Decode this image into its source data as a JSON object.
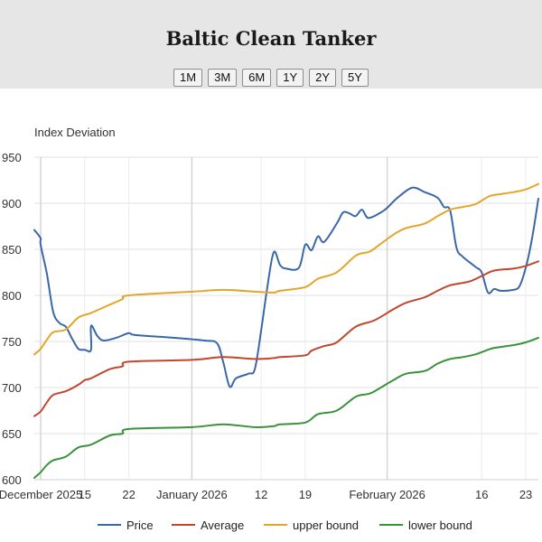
{
  "header": {
    "title": "Baltic Clean Tanker",
    "ranges": [
      "1M",
      "3M",
      "6M",
      "1Y",
      "2Y",
      "5Y"
    ]
  },
  "chart_data": {
    "type": "line",
    "title": "Baltic Clean Tanker",
    "ylabel": "Index Deviation",
    "xlabel": "",
    "ylim": [
      600,
      950
    ],
    "y_ticks": [
      600,
      650,
      700,
      750,
      800,
      850,
      900,
      950
    ],
    "x_range": [
      "2025-12-07",
      "2026-02-25"
    ],
    "x_ticks": [
      {
        "date": "2025-12-08",
        "label": "December 2025"
      },
      {
        "date": "2025-12-15",
        "label": "15"
      },
      {
        "date": "2025-12-22",
        "label": "22"
      },
      {
        "date": "2026-01-01",
        "label": "January 2026"
      },
      {
        "date": "2026-01-12",
        "label": "12"
      },
      {
        "date": "2026-01-19",
        "label": "19"
      },
      {
        "date": "2026-02-01",
        "label": "February 2026"
      },
      {
        "date": "2026-02-16",
        "label": "16"
      },
      {
        "date": "2026-02-23",
        "label": "23"
      }
    ],
    "grid": true,
    "legend_position": "bottom",
    "series": [
      {
        "name": "Price",
        "color": "#3a67a8",
        "points": [
          [
            "2025-12-07",
            871
          ],
          [
            "2025-12-08",
            862
          ],
          [
            "2025-12-08",
            855
          ],
          [
            "2025-12-09",
            823
          ],
          [
            "2025-12-10",
            782
          ],
          [
            "2025-12-11",
            770
          ],
          [
            "2025-12-12",
            766
          ],
          [
            "2025-12-13",
            753
          ],
          [
            "2025-12-14",
            742
          ],
          [
            "2025-12-15",
            741
          ],
          [
            "2025-12-16",
            741
          ],
          [
            "2025-12-16",
            767
          ],
          [
            "2025-12-17",
            756
          ],
          [
            "2025-12-18",
            751
          ],
          [
            "2025-12-20",
            754
          ],
          [
            "2025-12-22",
            759
          ],
          [
            "2025-12-23",
            757
          ],
          [
            "2025-12-29",
            754
          ],
          [
            "2026-01-03",
            751
          ],
          [
            "2026-01-05",
            748
          ],
          [
            "2026-01-06",
            727
          ],
          [
            "2026-01-07",
            701
          ],
          [
            "2026-01-08",
            710
          ],
          [
            "2026-01-10",
            715
          ],
          [
            "2026-01-11",
            720
          ],
          [
            "2026-01-12",
            762
          ],
          [
            "2026-01-13",
            810
          ],
          [
            "2026-01-14",
            847
          ],
          [
            "2026-01-15",
            833
          ],
          [
            "2026-01-16",
            829
          ],
          [
            "2026-01-18",
            830
          ],
          [
            "2026-01-19",
            855
          ],
          [
            "2026-01-20",
            849
          ],
          [
            "2026-01-21",
            864
          ],
          [
            "2026-01-22",
            858
          ],
          [
            "2026-01-24",
            878
          ],
          [
            "2026-01-25",
            890
          ],
          [
            "2026-01-26",
            889
          ],
          [
            "2026-01-27",
            886
          ],
          [
            "2026-01-28",
            893
          ],
          [
            "2026-01-29",
            884
          ],
          [
            "2026-01-31",
            890
          ],
          [
            "2026-02-01",
            895
          ],
          [
            "2026-02-02",
            902
          ],
          [
            "2026-02-03",
            908
          ],
          [
            "2026-02-05",
            917
          ],
          [
            "2026-02-07",
            912
          ],
          [
            "2026-02-09",
            906
          ],
          [
            "2026-02-10",
            896
          ],
          [
            "2026-02-11",
            892
          ],
          [
            "2026-02-12",
            852
          ],
          [
            "2026-02-13",
            842
          ],
          [
            "2026-02-15",
            831
          ],
          [
            "2026-02-16",
            825
          ],
          [
            "2026-02-17",
            803
          ],
          [
            "2026-02-18",
            807
          ],
          [
            "2026-02-19",
            805
          ],
          [
            "2026-02-21",
            806
          ],
          [
            "2026-02-22",
            810
          ],
          [
            "2026-02-23",
            830
          ],
          [
            "2026-02-24",
            862
          ],
          [
            "2026-02-25",
            905
          ]
        ]
      },
      {
        "name": "Average",
        "color": "#c0472c",
        "points": [
          [
            "2025-12-07",
            669
          ],
          [
            "2025-12-08",
            674
          ],
          [
            "2025-12-09",
            684
          ],
          [
            "2025-12-10",
            692
          ],
          [
            "2025-12-12",
            696
          ],
          [
            "2025-12-14",
            703
          ],
          [
            "2025-12-15",
            708
          ],
          [
            "2025-12-16",
            710
          ],
          [
            "2025-12-19",
            720
          ],
          [
            "2025-12-21",
            723
          ],
          [
            "2025-12-22",
            728
          ],
          [
            "2026-01-01",
            730
          ],
          [
            "2026-01-06",
            733
          ],
          [
            "2026-01-11",
            731
          ],
          [
            "2026-01-14",
            732
          ],
          [
            "2026-01-15",
            733
          ],
          [
            "2026-01-19",
            735
          ],
          [
            "2026-01-20",
            740
          ],
          [
            "2026-01-22",
            745
          ],
          [
            "2026-01-24",
            749
          ],
          [
            "2026-01-27",
            766
          ],
          [
            "2026-01-30",
            773
          ],
          [
            "2026-02-02",
            785
          ],
          [
            "2026-02-04",
            792
          ],
          [
            "2026-02-07",
            798
          ],
          [
            "2026-02-09",
            805
          ],
          [
            "2026-02-11",
            811
          ],
          [
            "2026-02-14",
            815
          ],
          [
            "2026-02-16",
            821
          ],
          [
            "2026-02-18",
            827
          ],
          [
            "2026-02-21",
            829
          ],
          [
            "2026-02-23",
            832
          ],
          [
            "2026-02-25",
            837
          ]
        ]
      },
      {
        "name": "upper bound",
        "color": "#e3a52a",
        "points": [
          [
            "2025-12-07",
            736
          ],
          [
            "2025-12-08",
            742
          ],
          [
            "2025-12-09",
            752
          ],
          [
            "2025-12-10",
            760
          ],
          [
            "2025-12-12",
            763
          ],
          [
            "2025-12-14",
            776
          ],
          [
            "2025-12-16",
            781
          ],
          [
            "2025-12-19",
            790
          ],
          [
            "2025-12-21",
            796
          ],
          [
            "2025-12-22",
            800
          ],
          [
            "2026-01-01",
            804
          ],
          [
            "2026-01-06",
            806
          ],
          [
            "2026-01-11",
            804
          ],
          [
            "2026-01-14",
            803
          ],
          [
            "2026-01-15",
            805
          ],
          [
            "2026-01-19",
            809
          ],
          [
            "2026-01-21",
            818
          ],
          [
            "2026-01-24",
            825
          ],
          [
            "2026-01-27",
            843
          ],
          [
            "2026-01-29",
            847
          ],
          [
            "2026-01-30",
            851
          ],
          [
            "2026-02-02",
            866
          ],
          [
            "2026-02-04",
            873
          ],
          [
            "2026-02-07",
            878
          ],
          [
            "2026-02-09",
            886
          ],
          [
            "2026-02-11",
            893
          ],
          [
            "2026-02-13",
            896
          ],
          [
            "2026-02-15",
            899
          ],
          [
            "2026-02-17",
            907
          ],
          [
            "2026-02-18",
            909
          ],
          [
            "2026-02-21",
            912
          ],
          [
            "2026-02-23",
            915
          ],
          [
            "2026-02-25",
            921
          ]
        ]
      },
      {
        "name": "lower bound",
        "color": "#3a923a",
        "points": [
          [
            "2025-12-07",
            602
          ],
          [
            "2025-12-08",
            608
          ],
          [
            "2025-12-09",
            616
          ],
          [
            "2025-12-10",
            621
          ],
          [
            "2025-12-12",
            625
          ],
          [
            "2025-12-14",
            635
          ],
          [
            "2025-12-16",
            638
          ],
          [
            "2025-12-19",
            648
          ],
          [
            "2025-12-21",
            650
          ],
          [
            "2025-12-22",
            655
          ],
          [
            "2026-01-01",
            657
          ],
          [
            "2026-01-06",
            660
          ],
          [
            "2026-01-11",
            657
          ],
          [
            "2026-01-14",
            658
          ],
          [
            "2026-01-15",
            660
          ],
          [
            "2026-01-19",
            662
          ],
          [
            "2026-01-21",
            671
          ],
          [
            "2026-01-24",
            675
          ],
          [
            "2026-01-27",
            690
          ],
          [
            "2026-01-29",
            693
          ],
          [
            "2026-01-30",
            696
          ],
          [
            "2026-02-02",
            708
          ],
          [
            "2026-02-04",
            715
          ],
          [
            "2026-02-07",
            718
          ],
          [
            "2026-02-09",
            726
          ],
          [
            "2026-02-11",
            731
          ],
          [
            "2026-02-13",
            733
          ],
          [
            "2026-02-15",
            736
          ],
          [
            "2026-02-17",
            741
          ],
          [
            "2026-02-18",
            743
          ],
          [
            "2026-02-21",
            746
          ],
          [
            "2026-02-23",
            749
          ],
          [
            "2026-02-25",
            754
          ]
        ]
      }
    ]
  }
}
